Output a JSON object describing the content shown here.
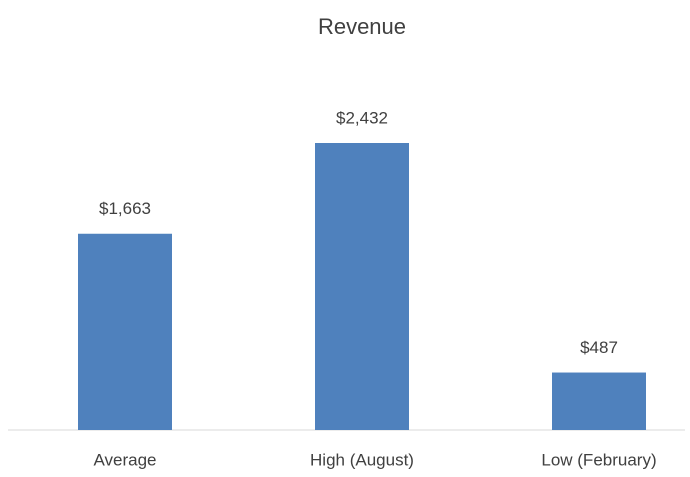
{
  "chart_data": {
    "type": "bar",
    "title": "Revenue",
    "categories": [
      "Average",
      "High (August)",
      "Low (February)"
    ],
    "values": [
      1663,
      2432,
      487
    ],
    "value_labels": [
      "$1,663",
      "$2,432",
      "$487"
    ],
    "color": "#4f81bd"
  }
}
